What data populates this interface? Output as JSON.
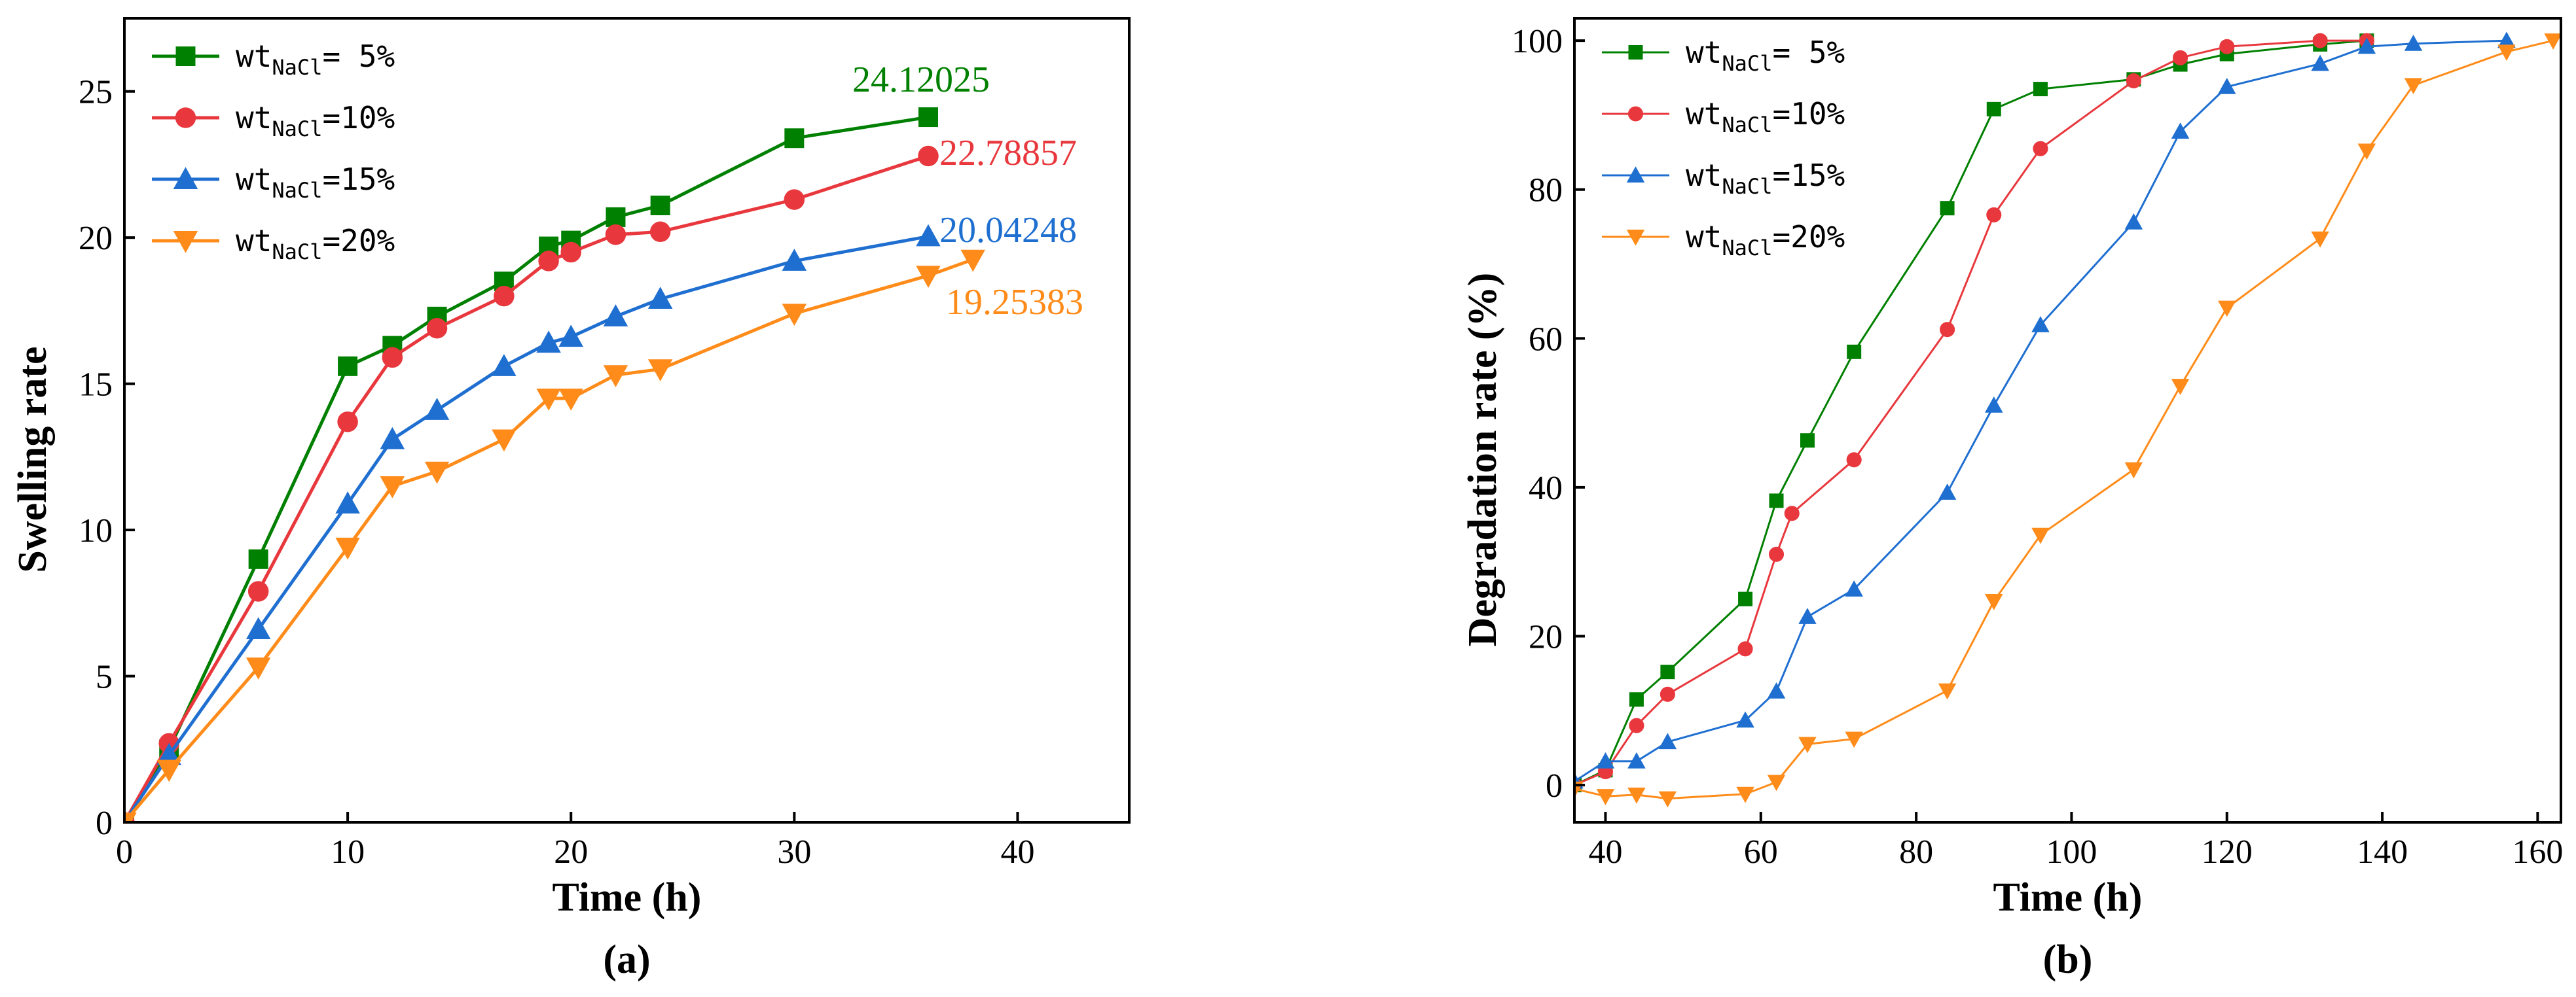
{
  "chart_data": [
    {
      "type": "line",
      "panel_label": "(a)",
      "xlabel": "Time (h)",
      "ylabel": "Swelling rate",
      "xlim": [
        0,
        45
      ],
      "ylim": [
        0,
        27.5
      ],
      "xticks": [
        0,
        10,
        20,
        30,
        40
      ],
      "yticks": [
        0,
        5,
        10,
        15,
        20,
        25
      ],
      "legend_position": "top-left",
      "series": [
        {
          "name": "5%",
          "color": "#008000",
          "marker": "square",
          "x": [
            0,
            2,
            6,
            10,
            12,
            14,
            17,
            19,
            20,
            22,
            24,
            30,
            36
          ],
          "y": [
            0,
            2.5,
            9.0,
            15.6,
            16.3,
            17.3,
            18.5,
            19.7,
            19.9,
            20.7,
            21.1,
            23.4,
            24.12
          ]
        },
        {
          "name": "10%",
          "color": "#e8383d",
          "marker": "circle",
          "x": [
            0,
            2,
            6,
            10,
            12,
            14,
            17,
            19,
            20,
            22,
            24,
            30,
            36
          ],
          "y": [
            0,
            2.7,
            7.9,
            13.7,
            15.9,
            16.9,
            18.0,
            19.2,
            19.5,
            20.1,
            20.2,
            21.3,
            22.79
          ]
        },
        {
          "name": "15%",
          "color": "#1f6fd1",
          "marker": "triangle-up",
          "x": [
            0,
            2,
            6,
            10,
            12,
            14,
            17,
            19,
            20,
            22,
            24,
            30,
            36
          ],
          "y": [
            0,
            2.3,
            6.6,
            10.9,
            13.1,
            14.1,
            15.6,
            16.4,
            16.6,
            17.3,
            17.9,
            19.2,
            20.04
          ]
        },
        {
          "name": "20%",
          "color": "#ff8c1a",
          "marker": "triangle-down",
          "x": [
            0,
            2,
            6,
            10,
            12,
            14,
            17,
            19,
            20,
            22,
            24,
            30,
            36,
            38
          ],
          "y": [
            0,
            1.8,
            5.3,
            9.4,
            11.5,
            12.0,
            13.1,
            14.5,
            14.5,
            15.3,
            15.5,
            17.4,
            18.7,
            19.25
          ]
        }
      ],
      "annotations": [
        {
          "text": "24.12025",
          "series": 0
        },
        {
          "text": "22.78857",
          "series": 1
        },
        {
          "text": "20.04248",
          "series": 2
        },
        {
          "text": "19.25383",
          "series": 3
        }
      ]
    },
    {
      "type": "line",
      "panel_label": "(b)",
      "xlabel": "Time (h)",
      "ylabel": "Degradation rate (%)",
      "xlim": [
        36,
        163
      ],
      "ylim": [
        -5,
        103
      ],
      "xticks": [
        40,
        60,
        80,
        100,
        120,
        140,
        160
      ],
      "yticks": [
        0,
        20,
        40,
        60,
        80,
        100
      ],
      "legend_position": "top-left",
      "series": [
        {
          "name": "5%",
          "color": "#008000",
          "marker": "square",
          "x": [
            36,
            40,
            44,
            48,
            58,
            62,
            66,
            72,
            84,
            90,
            96,
            108,
            114,
            120,
            132,
            138
          ],
          "y": [
            0,
            2,
            11.5,
            15.2,
            25,
            38.2,
            46.3,
            58.2,
            77.5,
            90.8,
            93.5,
            94.8,
            96.8,
            98.2,
            99.5,
            100
          ]
        },
        {
          "name": "10%",
          "color": "#e8383d",
          "marker": "circle",
          "x": [
            36,
            40,
            44,
            48,
            58,
            62,
            64,
            72,
            84,
            90,
            96,
            108,
            114,
            120,
            132,
            138
          ],
          "y": [
            0,
            1.8,
            8,
            12.2,
            18.3,
            31,
            36.5,
            43.7,
            61.2,
            76.6,
            85.5,
            94.6,
            97.7,
            99.2,
            100,
            100
          ]
        },
        {
          "name": "15%",
          "color": "#1f6fd1",
          "marker": "triangle-up",
          "x": [
            36,
            40,
            44,
            48,
            58,
            62,
            66,
            72,
            84,
            90,
            96,
            108,
            114,
            120,
            132,
            138,
            144,
            156
          ],
          "y": [
            0.5,
            3.2,
            3.2,
            5.8,
            8.7,
            12.6,
            22.6,
            26.3,
            39.3,
            51,
            61.8,
            75.6,
            87.8,
            93.8,
            96.9,
            99.2,
            99.6,
            100
          ]
        },
        {
          "name": "20%",
          "color": "#ff8c1a",
          "marker": "triangle-down",
          "x": [
            36,
            40,
            44,
            48,
            58,
            62,
            66,
            72,
            84,
            90,
            96,
            108,
            114,
            120,
            132,
            138,
            144,
            156,
            162
          ],
          "y": [
            -0.5,
            -1.5,
            -1.3,
            -1.8,
            -1.2,
            0.4,
            5.5,
            6.2,
            12.7,
            24.7,
            33.6,
            42.4,
            53.6,
            64.1,
            73.4,
            85.2,
            94,
            98.5,
            100
          ]
        }
      ],
      "annotations": []
    }
  ],
  "legend": {
    "prefix": "wt",
    "subscript": "NaCl",
    "entries": [
      "=  5%",
      "=10%",
      "=15%",
      "=20%"
    ]
  }
}
